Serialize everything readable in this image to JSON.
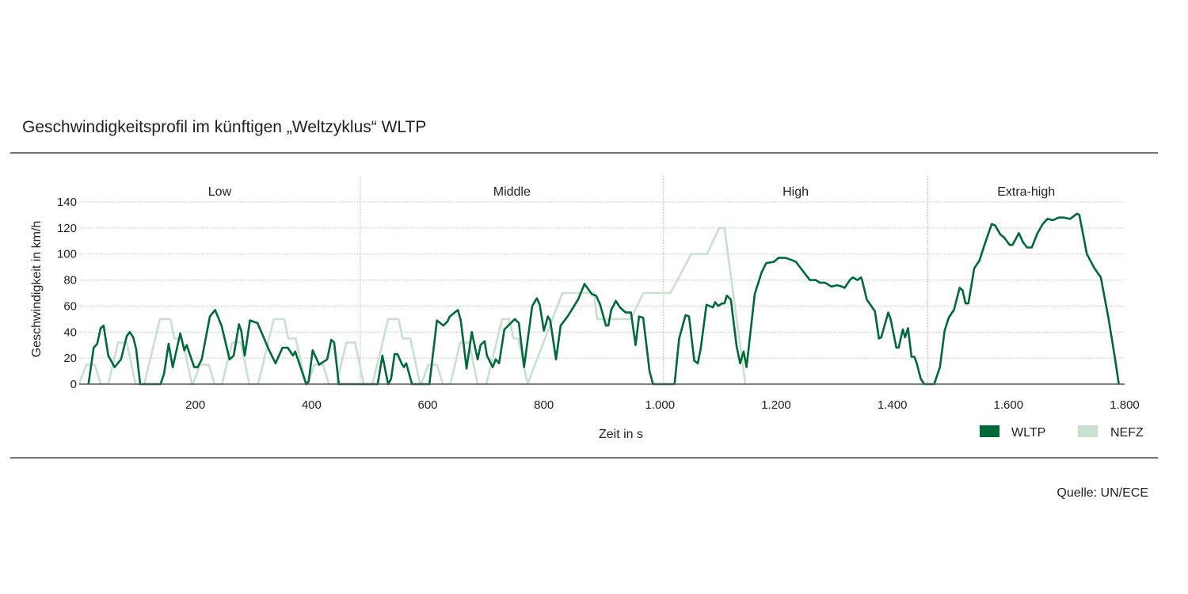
{
  "chart_data": {
    "type": "line",
    "title": "Geschwindigkeitsprofil im künftigen „Weltzyklus“ WLTP",
    "xlabel": "Zeit in s",
    "ylabel": "Geschwindigkeit in km/h",
    "source": "Quelle: UN/ECE",
    "xlim": [
      0,
      1800
    ],
    "ylim": [
      0,
      140
    ],
    "xticks": [
      200,
      400,
      600,
      800,
      1000,
      1200,
      1400,
      1600,
      1800
    ],
    "xtick_labels": [
      "200",
      "400",
      "600",
      "800",
      "1.000",
      "1.200",
      "1.400",
      "1.600",
      "1.800"
    ],
    "yticks": [
      0,
      20,
      40,
      60,
      80,
      100,
      120,
      140
    ],
    "ytick_labels": [
      "0",
      "20",
      "40",
      "60",
      "80",
      "100",
      "120",
      "140"
    ],
    "grid": "horizontal dotted",
    "legend_position": "bottom-right",
    "phases": [
      {
        "label": "Low",
        "start": 0,
        "end": 484
      },
      {
        "label": "Middle",
        "start": 484,
        "end": 1006
      },
      {
        "label": "High",
        "start": 1006,
        "end": 1461
      },
      {
        "label": "Extra-high",
        "start": 1461,
        "end": 1800
      }
    ],
    "series": [
      {
        "name": "NEFZ",
        "color": "#c9dfd0",
        "points": [
          [
            0,
            0
          ],
          [
            12,
            15
          ],
          [
            27,
            15
          ],
          [
            37,
            0
          ],
          [
            50,
            0
          ],
          [
            67,
            32
          ],
          [
            82,
            32
          ],
          [
            97,
            0
          ],
          [
            112,
            0
          ],
          [
            139,
            50
          ],
          [
            157,
            50
          ],
          [
            164,
            35
          ],
          [
            177,
            35
          ],
          [
            194,
            0
          ],
          [
            196,
            0
          ],
          [
            208,
            15
          ],
          [
            223,
            15
          ],
          [
            233,
            0
          ],
          [
            246,
            0
          ],
          [
            263,
            32
          ],
          [
            278,
            32
          ],
          [
            293,
            0
          ],
          [
            308,
            0
          ],
          [
            335,
            50
          ],
          [
            353,
            50
          ],
          [
            360,
            35
          ],
          [
            373,
            35
          ],
          [
            390,
            0
          ],
          [
            393,
            0
          ],
          [
            405,
            15
          ],
          [
            420,
            15
          ],
          [
            430,
            0
          ],
          [
            443,
            0
          ],
          [
            460,
            32
          ],
          [
            475,
            32
          ],
          [
            490,
            0
          ],
          [
            505,
            0
          ],
          [
            532,
            50
          ],
          [
            550,
            50
          ],
          [
            557,
            35
          ],
          [
            570,
            35
          ],
          [
            587,
            0
          ],
          [
            589,
            0
          ],
          [
            601,
            15
          ],
          [
            616,
            15
          ],
          [
            626,
            0
          ],
          [
            639,
            0
          ],
          [
            656,
            32
          ],
          [
            671,
            32
          ],
          [
            686,
            0
          ],
          [
            701,
            0
          ],
          [
            728,
            50
          ],
          [
            740,
            50
          ],
          [
            748,
            35
          ],
          [
            756,
            35
          ],
          [
            772,
            0
          ],
          [
            832,
            70
          ],
          [
            886,
            70
          ],
          [
            892,
            50
          ],
          [
            950,
            50
          ],
          [
            971,
            70
          ],
          [
            1018,
            70
          ],
          [
            1054,
            100
          ],
          [
            1081,
            100
          ],
          [
            1102,
            120
          ],
          [
            1111,
            120
          ],
          [
            1147,
            0
          ]
        ]
      },
      {
        "name": "WLTP",
        "color": "#00693a",
        "points": [
          [
            16,
            0
          ],
          [
            25,
            28
          ],
          [
            31,
            31
          ],
          [
            37,
            43
          ],
          [
            42,
            45
          ],
          [
            50,
            22
          ],
          [
            61,
            13
          ],
          [
            72,
            19
          ],
          [
            82,
            37
          ],
          [
            87,
            40
          ],
          [
            93,
            36
          ],
          [
            98,
            27
          ],
          [
            105,
            0
          ],
          [
            140,
            0
          ],
          [
            146,
            8
          ],
          [
            154,
            31
          ],
          [
            161,
            13
          ],
          [
            174,
            39
          ],
          [
            181,
            26
          ],
          [
            185,
            30
          ],
          [
            198,
            13
          ],
          [
            204,
            13
          ],
          [
            211,
            19
          ],
          [
            225,
            52
          ],
          [
            234,
            57
          ],
          [
            245,
            45
          ],
          [
            259,
            19
          ],
          [
            266,
            22
          ],
          [
            275,
            46
          ],
          [
            279,
            41
          ],
          [
            285,
            22
          ],
          [
            294,
            49
          ],
          [
            300,
            48
          ],
          [
            307,
            47
          ],
          [
            327,
            26
          ],
          [
            338,
            16
          ],
          [
            350,
            28
          ],
          [
            359,
            28
          ],
          [
            368,
            22
          ],
          [
            372,
            25
          ],
          [
            391,
            0
          ],
          [
            395,
            2
          ],
          [
            402,
            26
          ],
          [
            413,
            15
          ],
          [
            427,
            19
          ],
          [
            434,
            34
          ],
          [
            439,
            32
          ],
          [
            447,
            0
          ],
          [
            514,
            0
          ],
          [
            522,
            22
          ],
          [
            532,
            0
          ],
          [
            537,
            4
          ],
          [
            543,
            23
          ],
          [
            548,
            23
          ],
          [
            555,
            16
          ],
          [
            559,
            13
          ],
          [
            563,
            16
          ],
          [
            573,
            0
          ],
          [
            603,
            0
          ],
          [
            616,
            49
          ],
          [
            627,
            45
          ],
          [
            634,
            48
          ],
          [
            638,
            52
          ],
          [
            652,
            57
          ],
          [
            657,
            49
          ],
          [
            667,
            12
          ],
          [
            676,
            40
          ],
          [
            686,
            19
          ],
          [
            691,
            30
          ],
          [
            698,
            33
          ],
          [
            702,
            22
          ],
          [
            712,
            13
          ],
          [
            717,
            19
          ],
          [
            723,
            16
          ],
          [
            732,
            42
          ],
          [
            750,
            50
          ],
          [
            757,
            47
          ],
          [
            766,
            13
          ],
          [
            780,
            60
          ],
          [
            788,
            66
          ],
          [
            793,
            61
          ],
          [
            800,
            41
          ],
          [
            807,
            52
          ],
          [
            811,
            49
          ],
          [
            821,
            19
          ],
          [
            829,
            45
          ],
          [
            841,
            52
          ],
          [
            859,
            65
          ],
          [
            870,
            77
          ],
          [
            883,
            69
          ],
          [
            890,
            68
          ],
          [
            897,
            61
          ],
          [
            907,
            45
          ],
          [
            911,
            45
          ],
          [
            916,
            57
          ],
          [
            924,
            64
          ],
          [
            931,
            59
          ],
          [
            941,
            55
          ],
          [
            950,
            55
          ],
          [
            958,
            30
          ],
          [
            964,
            52
          ],
          [
            971,
            51
          ],
          [
            982,
            10
          ],
          [
            988,
            0
          ],
          [
            1025,
            0
          ],
          [
            1033,
            35
          ],
          [
            1044,
            53
          ],
          [
            1050,
            52
          ],
          [
            1059,
            18
          ],
          [
            1065,
            16
          ],
          [
            1070,
            27
          ],
          [
            1080,
            61
          ],
          [
            1091,
            59
          ],
          [
            1095,
            63
          ],
          [
            1100,
            60
          ],
          [
            1107,
            62
          ],
          [
            1111,
            62
          ],
          [
            1115,
            68
          ],
          [
            1122,
            65
          ],
          [
            1132,
            29
          ],
          [
            1138,
            16
          ],
          [
            1144,
            25
          ],
          [
            1149,
            13
          ],
          [
            1163,
            69
          ],
          [
            1175,
            86
          ],
          [
            1183,
            93
          ],
          [
            1196,
            94
          ],
          [
            1204,
            97
          ],
          [
            1216,
            97
          ],
          [
            1223,
            96
          ],
          [
            1234,
            94
          ],
          [
            1258,
            80
          ],
          [
            1268,
            80
          ],
          [
            1275,
            78
          ],
          [
            1284,
            78
          ],
          [
            1295,
            75
          ],
          [
            1305,
            76
          ],
          [
            1313,
            75
          ],
          [
            1318,
            74
          ],
          [
            1327,
            80
          ],
          [
            1332,
            82
          ],
          [
            1340,
            80
          ],
          [
            1346,
            82
          ],
          [
            1348,
            80
          ],
          [
            1356,
            65
          ],
          [
            1370,
            56
          ],
          [
            1377,
            35
          ],
          [
            1381,
            36
          ],
          [
            1393,
            55
          ],
          [
            1397,
            50
          ],
          [
            1407,
            28
          ],
          [
            1411,
            28
          ],
          [
            1418,
            42
          ],
          [
            1422,
            36
          ],
          [
            1427,
            43
          ],
          [
            1433,
            21
          ],
          [
            1438,
            21
          ],
          [
            1442,
            16
          ],
          [
            1449,
            4
          ],
          [
            1455,
            0
          ],
          [
            1472,
            0
          ],
          [
            1482,
            13
          ],
          [
            1490,
            41
          ],
          [
            1497,
            51
          ],
          [
            1506,
            57
          ],
          [
            1516,
            74
          ],
          [
            1521,
            72
          ],
          [
            1526,
            62
          ],
          [
            1531,
            62
          ],
          [
            1541,
            89
          ],
          [
            1550,
            95
          ],
          [
            1558,
            106
          ],
          [
            1571,
            123
          ],
          [
            1577,
            122
          ],
          [
            1586,
            115
          ],
          [
            1592,
            113
          ],
          [
            1602,
            107
          ],
          [
            1607,
            107
          ],
          [
            1618,
            116
          ],
          [
            1625,
            109
          ],
          [
            1632,
            105
          ],
          [
            1640,
            105
          ],
          [
            1650,
            116
          ],
          [
            1659,
            123
          ],
          [
            1667,
            127
          ],
          [
            1677,
            126
          ],
          [
            1686,
            128
          ],
          [
            1695,
            128
          ],
          [
            1706,
            127
          ],
          [
            1718,
            131
          ],
          [
            1722,
            130
          ],
          [
            1735,
            100
          ],
          [
            1748,
            89
          ],
          [
            1759,
            82
          ],
          [
            1772,
            51
          ],
          [
            1783,
            21
          ],
          [
            1790,
            0
          ]
        ]
      }
    ]
  }
}
